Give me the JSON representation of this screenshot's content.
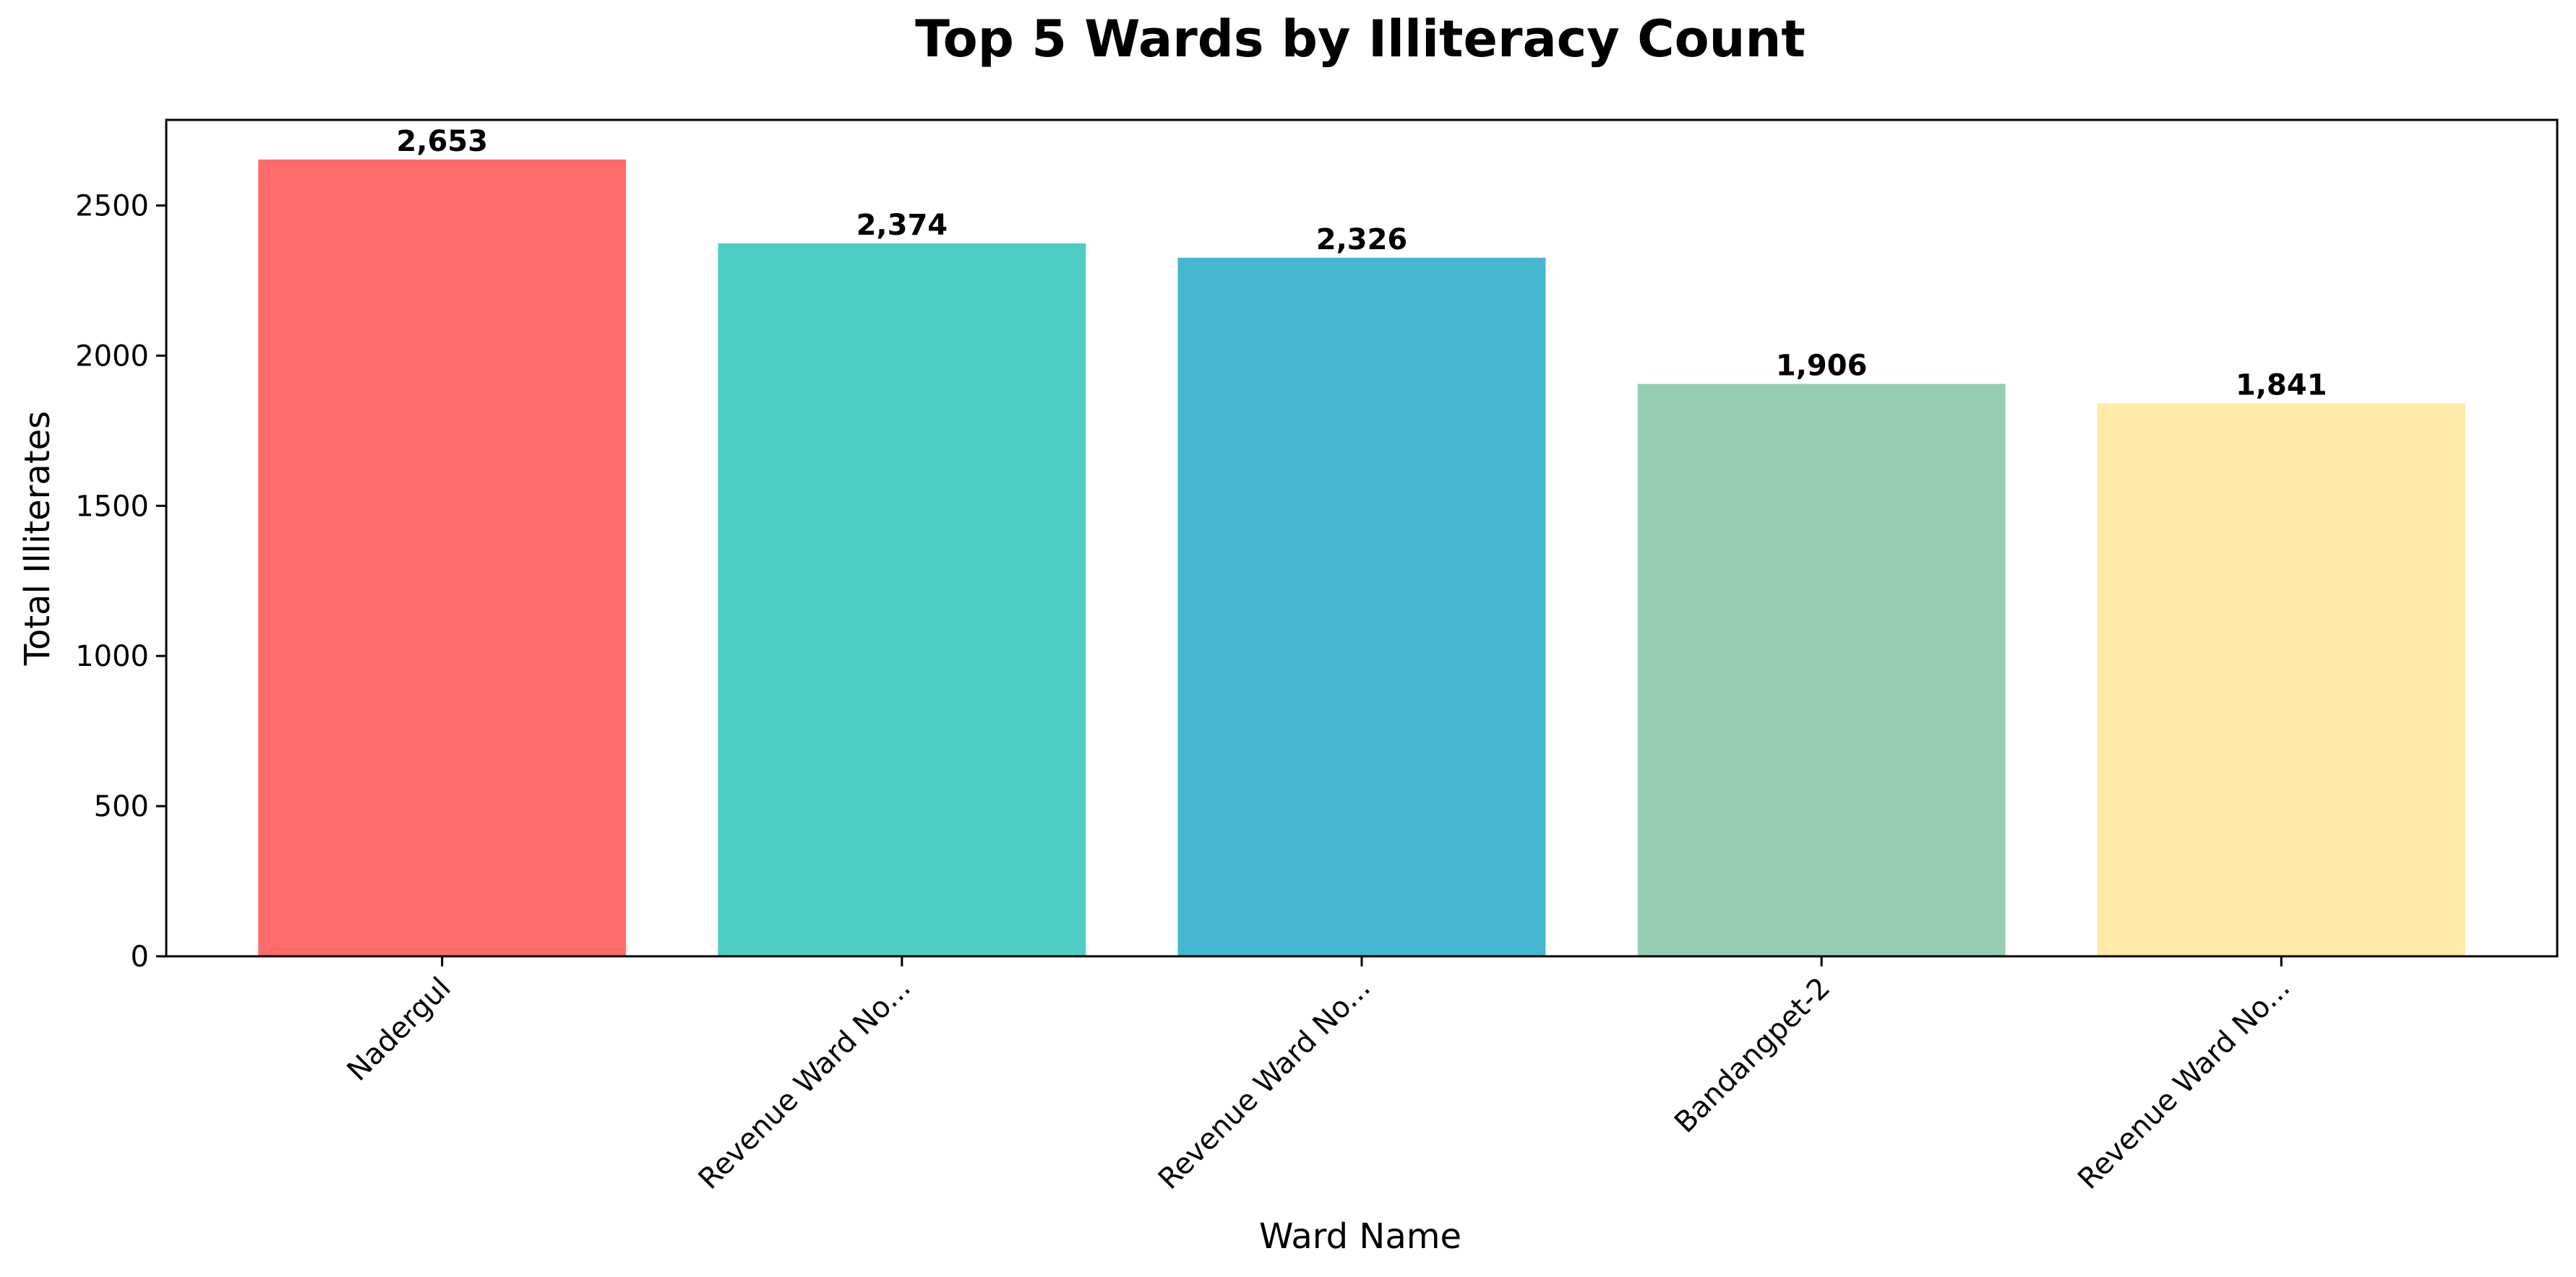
{
  "chart_data": {
    "type": "bar",
    "title": "Top 5 Wards by Illiteracy Count",
    "xlabel": "Ward Name",
    "ylabel": "Total Illiterates",
    "categories": [
      "Nadergul",
      "Revenue Ward No...",
      "Revenue Ward No...",
      "Bandangpet-2",
      "Revenue Ward No..."
    ],
    "values": [
      2653,
      2374,
      2326,
      1906,
      1841
    ],
    "data_labels": [
      "2,653",
      "2,374",
      "2,326",
      "1,906",
      "1,841"
    ],
    "colors": [
      "#FF6B6B",
      "#4ECDC4",
      "#45B7D1",
      "#96CEB4",
      "#FFEAA7"
    ],
    "ylim": [
      0,
      2785
    ],
    "yticks": [
      0,
      500,
      1000,
      1500,
      2000,
      2500
    ],
    "ytick_labels": [
      "0",
      "500",
      "1000",
      "1500",
      "2000",
      "2500"
    ],
    "grid": false,
    "legend": "none"
  }
}
